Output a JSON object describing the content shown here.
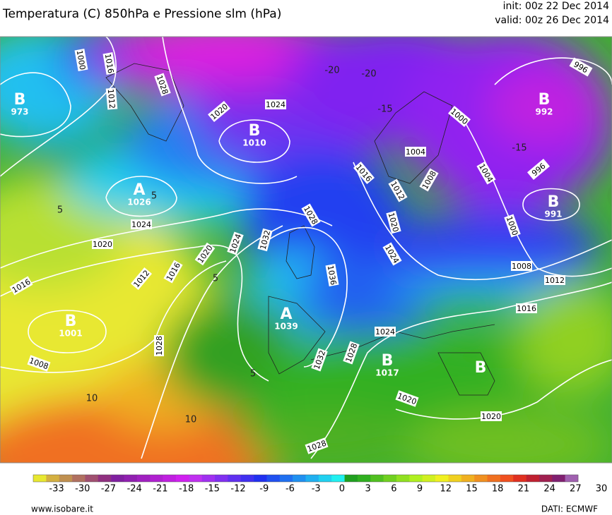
{
  "header": {
    "title": "Temperatura (C) 850hPa e Pressione slm (hPa)",
    "init": "init: 00z 22 Dec 2014",
    "valid": "valid: 00z 26 Dec 2014"
  },
  "centers": [
    {
      "type": "B",
      "value": 973
    },
    {
      "type": "A",
      "value": 1026
    },
    {
      "type": "B",
      "value": 1010
    },
    {
      "type": "B",
      "value": 1001
    },
    {
      "type": "A",
      "value": 1039
    },
    {
      "type": "B",
      "value": 1017
    },
    {
      "type": "B",
      "value": 992
    },
    {
      "type": "B",
      "value": 991
    },
    {
      "type": "B"
    }
  ],
  "isobar_labels": [
    1000,
    1016,
    1012,
    1028,
    1020,
    1024,
    1024,
    1020,
    1016,
    1012,
    1016,
    1020,
    1024,
    1032,
    1028,
    1036,
    1028,
    1008,
    1032,
    1028,
    1024,
    1020,
    1020,
    1028,
    1016,
    1012,
    1020,
    1024,
    1004,
    1008,
    1000,
    1004,
    996,
    996,
    1000,
    1008,
    1012,
    1016
  ],
  "isotherm_labels": [
    -20,
    -20,
    -15,
    -15,
    5,
    5,
    5,
    10,
    10,
    5
  ],
  "colorbar": {
    "ticks": [
      -33,
      -30,
      -27,
      -24,
      -21,
      -18,
      -15,
      -12,
      -9,
      -6,
      -3,
      0,
      3,
      6,
      9,
      12,
      15,
      18,
      21,
      24,
      27,
      30
    ],
    "colors": [
      "#e8e830",
      "#d4b040",
      "#c09050",
      "#b07060",
      "#a05070",
      "#903080",
      "#8020a0",
      "#9020b0",
      "#a020c0",
      "#b020d0",
      "#c020e0",
      "#d020f0",
      "#c030f0",
      "#a030f0",
      "#8030f0",
      "#6030f0",
      "#4030f0",
      "#2030f0",
      "#2050f0",
      "#2070f0",
      "#2090f0",
      "#20b0f0",
      "#20d0f0",
      "#20f0f0",
      "#20a020",
      "#30b020",
      "#50c020",
      "#70d020",
      "#90e020",
      "#b0f020",
      "#d0f020",
      "#f0f020",
      "#f0d020",
      "#f0b020",
      "#f09020",
      "#f07020",
      "#f05020",
      "#e03020",
      "#c02030",
      "#a02050",
      "#802070",
      "#a060b0"
    ]
  },
  "footer": {
    "site": "www.isobare.it",
    "source": "DATI: ECMWF"
  }
}
